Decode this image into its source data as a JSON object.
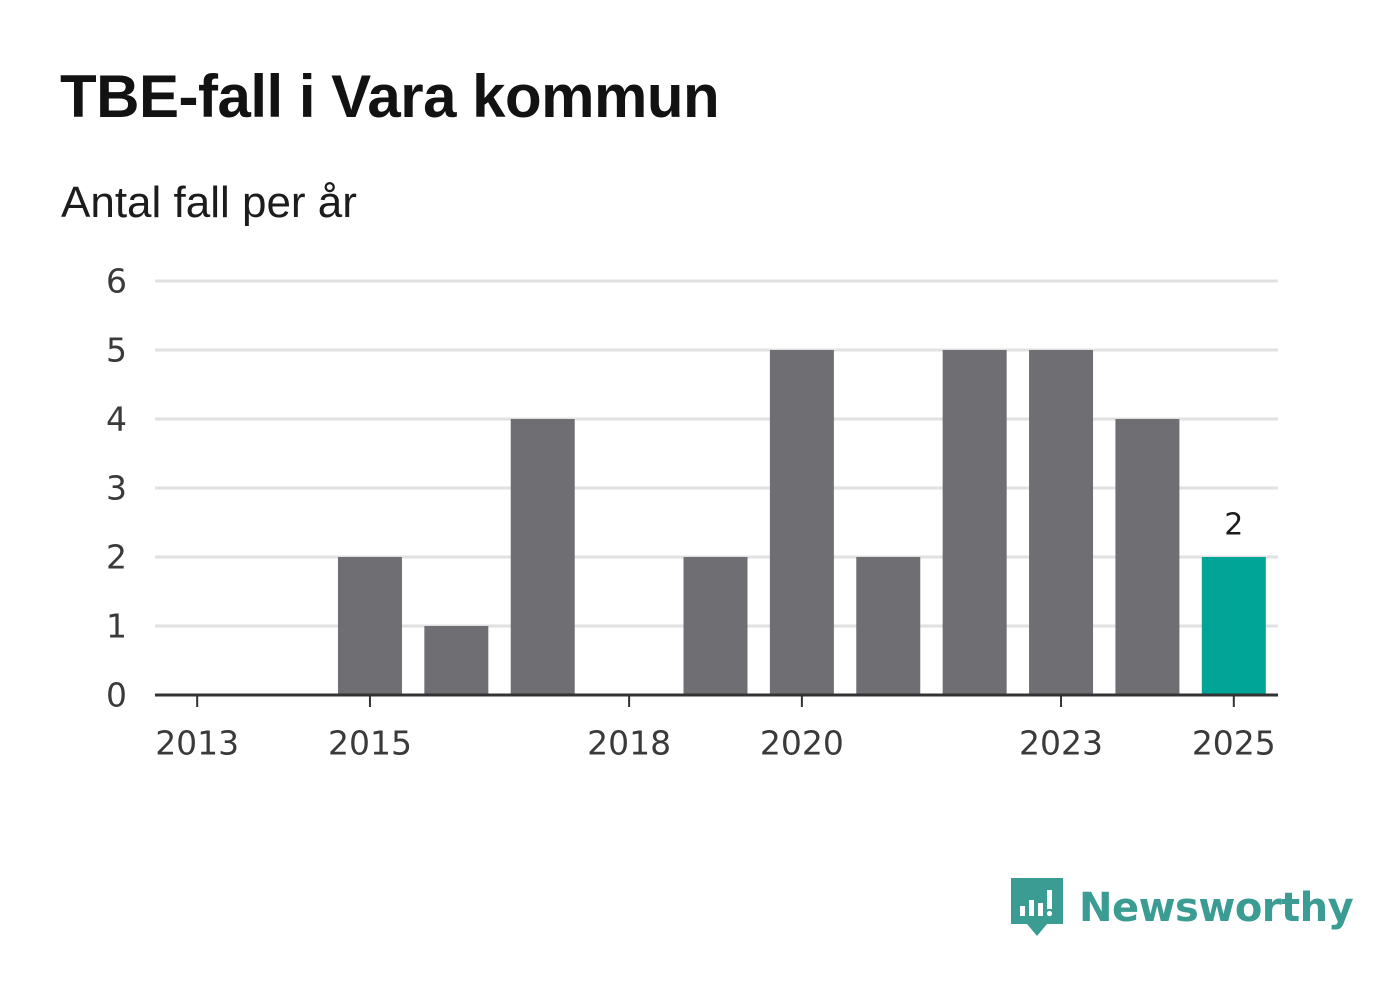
{
  "title": "TBE-fall i Vara kommun",
  "subtitle": "Antal fall per år",
  "brand": {
    "name": "Newsworthy",
    "icon": "newsworthy-logo-icon",
    "color": "#3a9c93"
  },
  "colors": {
    "bar": "#6f6e73",
    "highlight": "#00a597",
    "grid": "#e1e1e1",
    "axis": "#333333"
  },
  "chart_data": {
    "type": "bar",
    "categories": [
      "2013",
      "2014",
      "2015",
      "2016",
      "2017",
      "2018",
      "2019",
      "2020",
      "2021",
      "2022",
      "2023",
      "2024",
      "2025"
    ],
    "values": [
      0,
      0,
      2,
      1,
      4,
      0,
      2,
      5,
      2,
      5,
      5,
      4,
      2
    ],
    "highlight_index": 12,
    "data_labels": [
      {
        "index": 12,
        "text": "2"
      }
    ],
    "x_tick_labels": [
      "2013",
      "2015",
      "2018",
      "2020",
      "2023",
      "2025"
    ],
    "y_ticks": [
      "0",
      "1",
      "2",
      "3",
      "4",
      "5",
      "6"
    ],
    "ylim": [
      0,
      6
    ],
    "title": "TBE-fall i Vara kommun",
    "subtitle": "Antal fall per år",
    "xlabel": "",
    "ylabel": "",
    "grid": true,
    "legend": "none"
  }
}
